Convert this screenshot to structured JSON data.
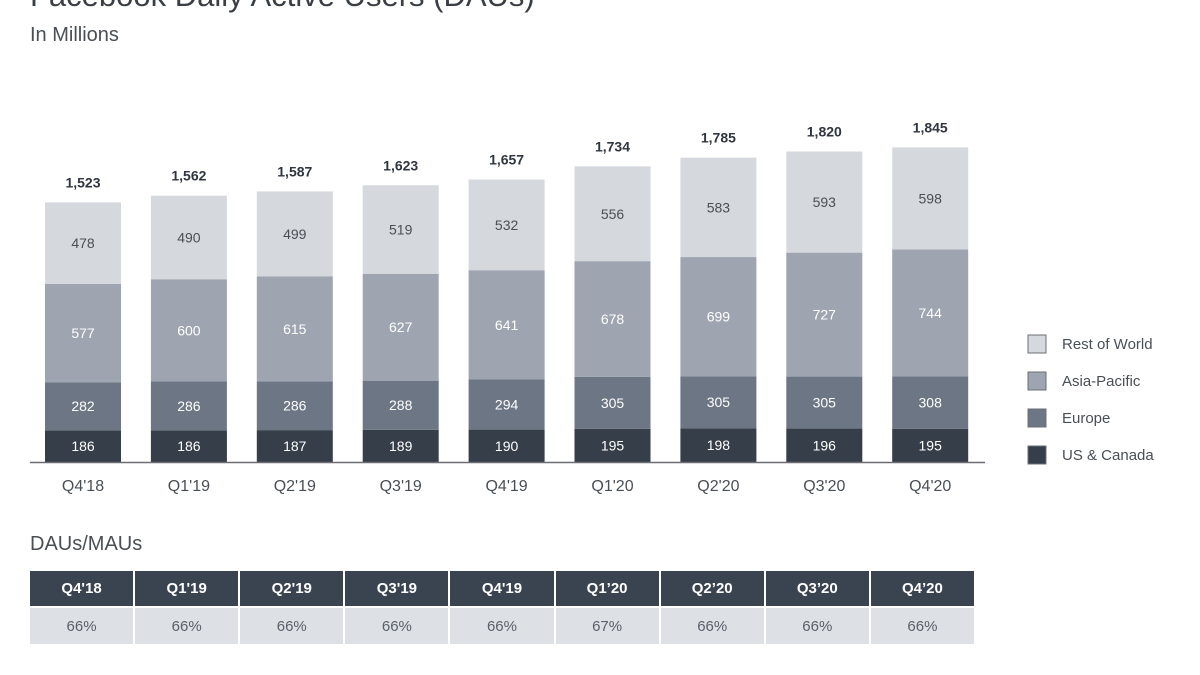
{
  "header": {
    "title": "Facebook Daily Active Users (DAUs)",
    "subtitle": "In Millions"
  },
  "colors": {
    "Rest of World": "#d5d8dd",
    "Asia-Pacific": "#9ea5b0",
    "Europe": "#6c7685",
    "US & Canada": "#363e49",
    "axis": "#6b6f75"
  },
  "chart_data": {
    "type": "bar",
    "stacked": true,
    "categories": [
      "Q4'18",
      "Q1'19",
      "Q2'19",
      "Q3'19",
      "Q4'19",
      "Q1'20",
      "Q2'20",
      "Q3'20",
      "Q4'20"
    ],
    "series": [
      {
        "name": "US & Canada",
        "values": [
          186,
          186,
          187,
          189,
          190,
          195,
          198,
          196,
          195
        ]
      },
      {
        "name": "Europe",
        "values": [
          282,
          286,
          286,
          288,
          294,
          305,
          305,
          305,
          308
        ]
      },
      {
        "name": "Asia-Pacific",
        "values": [
          577,
          600,
          615,
          627,
          641,
          678,
          699,
          727,
          744
        ]
      },
      {
        "name": "Rest of World",
        "values": [
          478,
          490,
          499,
          519,
          532,
          556,
          583,
          593,
          598
        ]
      }
    ],
    "totals": [
      "1,523",
      "1,562",
      "1,587",
      "1,623",
      "1,657",
      "1,734",
      "1,785",
      "1,820",
      "1,845"
    ],
    "title": "Facebook Daily Active Users (DAUs)",
    "subtitle": "In Millions",
    "legend": {
      "position": "right",
      "entries": [
        "Rest of World",
        "Asia-Pacific",
        "Europe",
        "US & Canada"
      ]
    },
    "grid": false,
    "ylim": [
      0,
      1900
    ]
  },
  "dau_mau": {
    "title": "DAUs/MAUs",
    "headers": [
      "Q4'18",
      "Q1'19",
      "Q2'19",
      "Q3'19",
      "Q4'19",
      "Q1’20",
      "Q2’20",
      "Q3’20",
      "Q4’20"
    ],
    "values": [
      "66%",
      "66%",
      "66%",
      "66%",
      "66%",
      "67%",
      "66%",
      "66%",
      "66%"
    ]
  }
}
